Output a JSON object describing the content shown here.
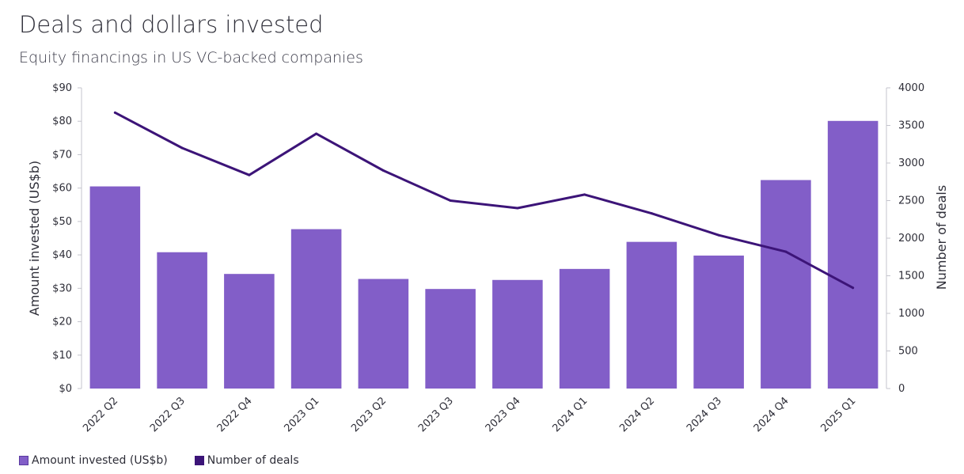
{
  "chart_data": {
    "type": "bar",
    "title": "Deals and dollars invested",
    "subtitle": "Equity financings in US VC-backed companies",
    "categories": [
      "2022 Q2",
      "2022 Q3",
      "2022 Q4",
      "2023 Q1",
      "2023 Q2",
      "2023 Q3",
      "2023 Q4",
      "2024 Q1",
      "2024 Q2",
      "2024 Q3",
      "2024 Q4",
      "2025 Q1"
    ],
    "series": [
      {
        "name": "Amount invested (US$b)",
        "type": "bar",
        "axis": "left",
        "color": "#825ec8",
        "values": [
          60.5,
          40.8,
          34.3,
          47.7,
          32.8,
          29.8,
          32.5,
          35.8,
          43.9,
          39.8,
          62.4,
          80.1
        ]
      },
      {
        "name": "Number of deals",
        "type": "line",
        "axis": "right",
        "color": "#3c1478",
        "values": [
          3670,
          3200,
          2840,
          3390,
          2900,
          2500,
          2400,
          2580,
          2330,
          2040,
          1820,
          1340
        ]
      }
    ],
    "y_left": {
      "label": "Amount invested (US$b)",
      "ylim": [
        0,
        90
      ],
      "ticks": [
        0,
        10,
        20,
        30,
        40,
        50,
        60,
        70,
        80,
        90
      ],
      "tick_labels": [
        "$0",
        "$10",
        "$20",
        "$30",
        "$40",
        "$50",
        "$60",
        "$70",
        "$80",
        "$90"
      ]
    },
    "y_right": {
      "label": "Number of deals",
      "ylim": [
        0,
        4000
      ],
      "ticks": [
        0,
        500,
        1000,
        1500,
        2000,
        2500,
        3000,
        3500,
        4000
      ],
      "tick_labels": [
        "0",
        "500",
        "1000",
        "1500",
        "2000",
        "2500",
        "3000",
        "3500",
        "4000"
      ]
    },
    "grid": false,
    "legend": "bottom-left"
  }
}
